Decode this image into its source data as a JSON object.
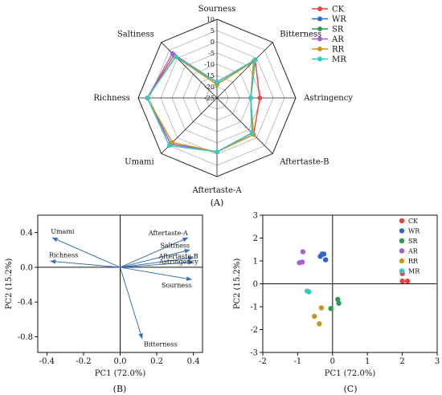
{
  "figure": {
    "panel_labels": [
      "(A)",
      "(B)",
      "(C)"
    ]
  },
  "chart_data": [
    {
      "type": "radar",
      "axes": [
        "Sourness",
        "Bitterness",
        "Astringency",
        "Aftertaste-B",
        "Aftertaste-A",
        "Umami",
        "Richness",
        "Saltiness"
      ],
      "r_range": [
        -25,
        10
      ],
      "r_ticks": [
        10,
        5,
        0,
        -5,
        -10,
        -15,
        -20,
        -25
      ],
      "tick_labels": [
        "10",
        "5",
        "0",
        "-5",
        "-10",
        "-15",
        "-20",
        "-25"
      ],
      "legend": {
        "placement": "top-right"
      },
      "series": [
        {
          "name": "CK",
          "color": "#e8433c",
          "values": [
            -18,
            -1,
            -6,
            -2,
            -1,
            4,
            6,
            2
          ]
        },
        {
          "name": "WR",
          "color": "#2f67c8",
          "values": [
            -18,
            -1,
            -10,
            -3,
            -1,
            4,
            6,
            1
          ]
        },
        {
          "name": "SR",
          "color": "#2d9a53",
          "values": [
            -19,
            -2,
            -10,
            -3,
            -1,
            4,
            6,
            1
          ]
        },
        {
          "name": "AR",
          "color": "#a55fd0",
          "values": [
            -18,
            -1,
            -10,
            -3,
            -1,
            4,
            6,
            3
          ]
        },
        {
          "name": "RR",
          "color": "#c8961c",
          "values": [
            -19,
            -2,
            -10,
            -2,
            -1,
            3,
            6,
            1
          ]
        },
        {
          "name": "MR",
          "color": "#33c9c2",
          "values": [
            -18,
            -1,
            -10,
            -3,
            -1,
            5,
            6,
            1
          ]
        }
      ]
    },
    {
      "type": "biplot",
      "xlabel": "PC1 (72.0%)",
      "ylabel": "PC2 (15.2%)",
      "xlim": [
        -0.45,
        0.45
      ],
      "ylim": [
        -0.98,
        0.6
      ],
      "xticks": [
        -0.4,
        -0.2,
        0.0,
        0.2,
        0.4
      ],
      "xtick_labels": [
        "-0.4",
        "-0.2",
        "0.0",
        "0.2",
        "0.4"
      ],
      "yticks": [
        0.4,
        0.0,
        -0.4,
        -0.8
      ],
      "ytick_labels": [
        "0.4",
        "0.0",
        "-0.4",
        "-0.8"
      ],
      "vectors": [
        {
          "name": "Umami",
          "x": -0.37,
          "y": 0.34
        },
        {
          "name": "Richness",
          "x": -0.38,
          "y": 0.07
        },
        {
          "name": "Aftertaste-A",
          "x": 0.37,
          "y": 0.34
        },
        {
          "name": "Saltiness",
          "x": 0.38,
          "y": 0.2
        },
        {
          "name": "Aftertaste-B",
          "x": 0.4,
          "y": 0.11
        },
        {
          "name": "Astringency",
          "x": 0.4,
          "y": 0.06
        },
        {
          "name": "Sourness",
          "x": 0.39,
          "y": -0.14
        },
        {
          "name": "Bitterness",
          "x": 0.12,
          "y": -0.82
        }
      ]
    },
    {
      "type": "scatter",
      "xlabel": "PC1 (72.0%)",
      "ylabel": "PC2 (15.2%)",
      "xlim": [
        -2,
        3
      ],
      "ylim": [
        -3,
        3
      ],
      "xticks": [
        -2,
        -1,
        0,
        1,
        2,
        3
      ],
      "yticks": [
        -3,
        -2,
        -1,
        0,
        1,
        2,
        3
      ],
      "legend": {
        "placement": "top-right"
      },
      "series": [
        {
          "name": "CK",
          "color": "#e8433c",
          "points": [
            [
              2.0,
              0.45
            ],
            [
              2.0,
              0.12
            ],
            [
              2.15,
              0.12
            ]
          ]
        },
        {
          "name": "WR",
          "color": "#2f67c8",
          "points": [
            [
              -0.3,
              1.3
            ],
            [
              -0.25,
              1.3
            ],
            [
              -0.2,
              1.05
            ],
            [
              -0.35,
              1.2
            ]
          ]
        },
        {
          "name": "SR",
          "color": "#2d9a53",
          "points": [
            [
              0.15,
              -0.68
            ],
            [
              0.18,
              -0.85
            ],
            [
              -0.05,
              -1.08
            ]
          ]
        },
        {
          "name": "AR",
          "color": "#a55fd0",
          "points": [
            [
              -0.85,
              1.4
            ],
            [
              -0.95,
              0.92
            ],
            [
              -0.87,
              0.95
            ]
          ]
        },
        {
          "name": "RR",
          "color": "#c8961c",
          "points": [
            [
              -0.32,
              -1.05
            ],
            [
              -0.52,
              -1.42
            ],
            [
              -0.38,
              -1.75
            ]
          ]
        },
        {
          "name": "MR",
          "color": "#33c9c2",
          "points": [
            [
              -0.73,
              -0.32
            ],
            [
              -0.68,
              -0.35
            ]
          ]
        }
      ]
    }
  ]
}
